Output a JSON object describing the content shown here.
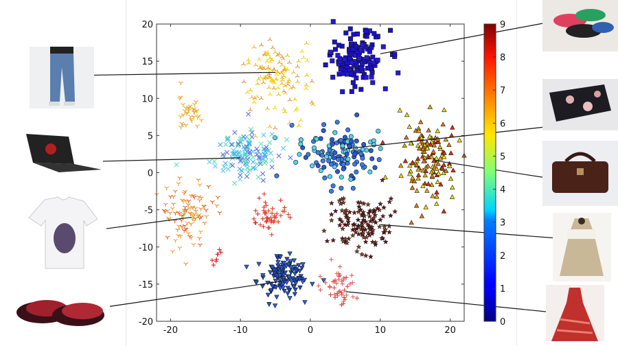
{
  "chart_data": {
    "type": "scatter",
    "title": "",
    "xlabel": "",
    "ylabel": "",
    "xlim": [
      -22,
      22
    ],
    "ylim": [
      -20,
      20
    ],
    "xticks": [
      "-20",
      "-10",
      "0",
      "10",
      "20"
    ],
    "yticks": [
      "20",
      "15",
      "10",
      "5",
      "0",
      "-5",
      "-10",
      "-15",
      "-20"
    ],
    "grid": false,
    "colorbar": {
      "min": 0,
      "max": 9,
      "ticks": [
        "0",
        "1",
        "2",
        "3",
        "4",
        "5",
        "6",
        "7",
        "8",
        "9"
      ],
      "colormap": "jet"
    },
    "clusters": [
      {
        "label": 0,
        "marker": "square",
        "colors": [
          "#1a10d0",
          "#2418e0"
        ],
        "center": [
          6.5,
          15.5
        ],
        "spread": [
          2.1,
          1.9
        ],
        "count": 140,
        "image": "shoes"
      },
      {
        "label": 2,
        "marker": "circle",
        "colors": [
          "#3b7be6",
          "#55d4ec",
          "#2a5ad8"
        ],
        "center": [
          4,
          2.5
        ],
        "spread": [
          2.6,
          1.9
        ],
        "count": 130,
        "image": "wallet"
      },
      {
        "label": 1,
        "marker": "triangle-down",
        "colors": [
          "#2a62dc",
          "#1f50d0"
        ],
        "center": [
          -4,
          -14
        ],
        "spread": [
          1.8,
          1.3
        ],
        "count": 130,
        "image": "slippers"
      },
      {
        "label": 3,
        "marker": "x",
        "colors": [
          "#5cc8f2",
          "#4ab0f0",
          "#6070e0",
          "#60e0b0"
        ],
        "center": [
          -9.5,
          2.5
        ],
        "spread": [
          2.4,
          1.7
        ],
        "count": 130,
        "image": "laptop"
      },
      {
        "label": 6,
        "marker": "tri-up",
        "colors": [
          "#f2d200",
          "#f0b800",
          "#e88a40"
        ],
        "center": [
          -5,
          13
        ],
        "spread": [
          2.5,
          2.4
        ],
        "count": 120,
        "image": "jeans"
      },
      {
        "label": 7,
        "marker": "tri-down",
        "colors": [
          "#e88a2a",
          "#f0a030",
          "#e06020"
        ],
        "center": [
          -17.5,
          -5.5
        ],
        "spread": [
          2,
          2.1
        ],
        "count": 95,
        "image": "t-shirt"
      },
      {
        "label": 7,
        "marker": "tri-down",
        "colors": [
          "#f0a030",
          "#e8b020"
        ],
        "center": [
          -17.3,
          8.2
        ],
        "spread": [
          0.8,
          1.1
        ],
        "count": 35,
        "image": ""
      },
      {
        "label": 6,
        "marker": "triangle-up",
        "colors": [
          "#f2e000",
          "#e8b000",
          "#e07a10",
          "#d83010"
        ],
        "center": [
          17,
          1.5
        ],
        "spread": [
          2,
          2.8
        ],
        "count": 140,
        "image": "handbag"
      },
      {
        "label": 8,
        "marker": "plus",
        "colors": [
          "#e83020",
          "#e04030"
        ],
        "center": [
          -5.8,
          -5.9
        ],
        "spread": [
          1.4,
          1.1
        ],
        "count": 45,
        "image": ""
      },
      {
        "label": 8,
        "marker": "plus",
        "colors": [
          "#e04040",
          "#e06060"
        ],
        "center": [
          4.5,
          -15.3
        ],
        "spread": [
          1.3,
          1.5
        ],
        "count": 45,
        "image": "dress"
      },
      {
        "label": 8,
        "marker": "plus",
        "colors": [
          "#e02020"
        ],
        "center": [
          -13.3,
          -11
        ],
        "spread": [
          0.3,
          0.6
        ],
        "count": 8,
        "image": ""
      },
      {
        "label": 9,
        "marker": "star",
        "colors": [
          "#6a1010",
          "#7a2018",
          "#8a4020"
        ],
        "center": [
          7.5,
          -6.8
        ],
        "spread": [
          2.1,
          1.7
        ],
        "count": 125,
        "image": "coat"
      }
    ],
    "images": [
      {
        "name": "jeans",
        "anchor": [
          -5,
          13.5
        ]
      },
      {
        "name": "laptop",
        "anchor": [
          -10,
          2
        ]
      },
      {
        "name": "t-shirt",
        "anchor": [
          -17,
          -6
        ]
      },
      {
        "name": "slippers",
        "anchor": [
          -4,
          -14.6
        ]
      },
      {
        "name": "shoes",
        "anchor": [
          10,
          16
        ]
      },
      {
        "name": "wallet",
        "anchor": [
          5,
          3.2
        ]
      },
      {
        "name": "handbag",
        "anchor": [
          18,
          1.6
        ]
      },
      {
        "name": "coat",
        "anchor": [
          10,
          -7
        ]
      },
      {
        "name": "dress",
        "anchor": [
          5,
          -16
        ]
      }
    ]
  }
}
